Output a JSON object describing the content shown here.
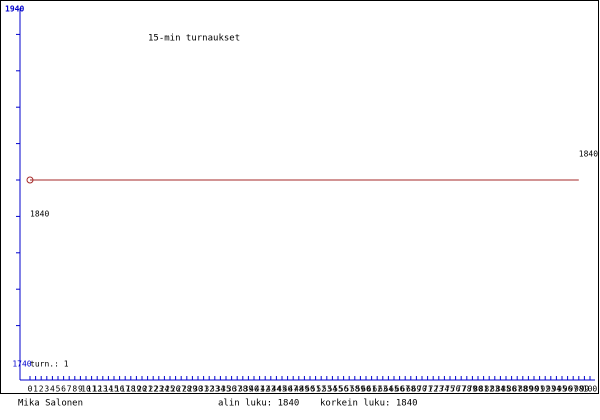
{
  "chart_data": {
    "type": "line",
    "title": "15-min turnaukset",
    "annotation": "turn.: 1",
    "x": [
      0,
      98
    ],
    "series": [
      {
        "values": [
          1840,
          1840
        ],
        "value_labels": [
          "1840",
          "1840"
        ],
        "color": "#a52a2a"
      }
    ],
    "xlim": [
      0,
      100
    ],
    "xticks": [
      0,
      1,
      2,
      3,
      4,
      5,
      6,
      7,
      8,
      9,
      10,
      11,
      12,
      13,
      14,
      15,
      16,
      17,
      18,
      19,
      20,
      21,
      22,
      23,
      24,
      25,
      26,
      27,
      28,
      29,
      30,
      31,
      32,
      33,
      34,
      35,
      36,
      37,
      38,
      39,
      40,
      41,
      42,
      43,
      44,
      45,
      46,
      47,
      48,
      49,
      50,
      51,
      52,
      53,
      54,
      55,
      56,
      57,
      58,
      59,
      60,
      61,
      62,
      63,
      64,
      65,
      66,
      67,
      68,
      69,
      70,
      71,
      72,
      73,
      74,
      75,
      76,
      77,
      78,
      79,
      80,
      81,
      82,
      83,
      84,
      85,
      86,
      87,
      88,
      89,
      90,
      91,
      92,
      93,
      94,
      95,
      96,
      97,
      98,
      99,
      100
    ],
    "ylim": [
      1740,
      1940
    ],
    "yticks": [
      1760,
      1780,
      1800,
      1820,
      1840,
      1860,
      1880,
      1900,
      1920
    ],
    "axis_color": "#0000cc"
  },
  "footer": {
    "author": "Mika Salonen",
    "min": "alin luku: 1840",
    "max": "korkein luku: 1840"
  }
}
